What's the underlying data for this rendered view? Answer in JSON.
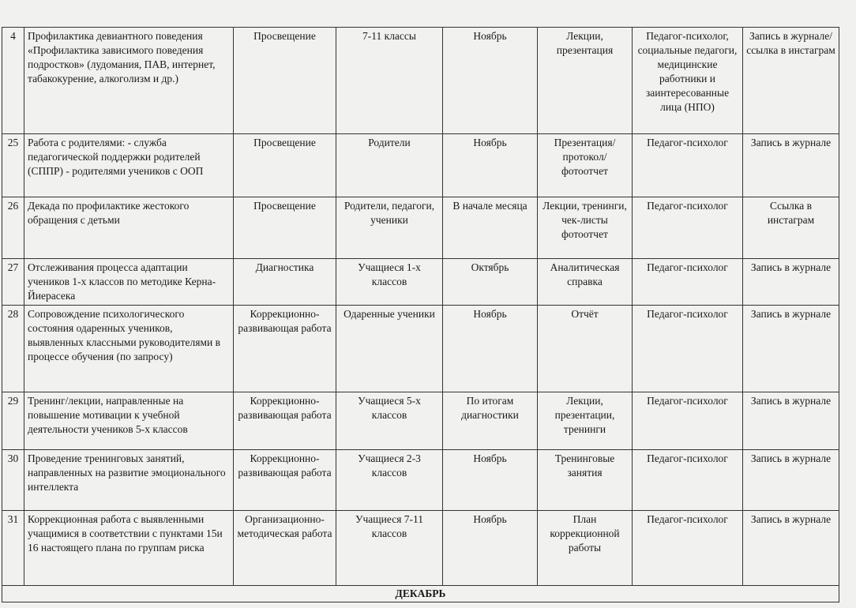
{
  "table": {
    "rows": [
      [
        "4",
        "Профилактика девиантного поведения «Профилактика зависимого поведения подростков» (лудомания, ПАВ, интернет, табакокурение, алкоголизм и др.)",
        "Просвещение",
        "7-11 классы",
        "Ноябрь",
        "Лекции, презентация",
        "Педагог-психолог, социальные педагоги, медицинские работники и заинтересованные лица (НПО)",
        "Запись в журнале/ ссылка в инстаграм"
      ],
      [
        "25",
        "Работа с родителями: - служба педагогической поддержки родителей (СППР) - родителями учеников с ООП",
        "Просвещение",
        "Родители",
        "Ноябрь",
        "Презентация/ протокол/ фотоотчет",
        "Педагог-психолог",
        "Запись в журнале"
      ],
      [
        "26",
        "Декада по профилактике жестокого обращения с детьми",
        "Просвещение",
        "Родители, педагоги, ученики",
        "В начале месяца",
        "Лекции, тренинги, чек-листы фотоотчет",
        "Педагог-психолог",
        "Ссылка в инстаграм"
      ],
      [
        "27",
        "Отслеживания процесса адаптации учеников 1-х классов по методике Керна-Йиерасека",
        "Диагностика",
        "Учащиеся 1-х классов",
        "Октябрь",
        "Аналитическая справка",
        "Педагог-психолог",
        "Запись в журнале"
      ],
      [
        "28",
        "Сопровождение психологического состояния одаренных учеников, выявленных классными руководителями в процессе обучения (по запросу)",
        "Коррекционно-развивающая работа",
        "Одаренные ученики",
        "Ноябрь",
        "Отчёт",
        "Педагог-психолог",
        "Запись в журнале"
      ],
      [
        "29",
        "Тренинг/лекции, направленные на повышение мотивации к учебной деятельности учеников 5-х классов",
        "Коррекционно-развивающая работа",
        "Учащиеся 5-х классов",
        "По итогам диагностики",
        "Лекции, презентации, тренинги",
        "Педагог-психолог",
        "Запись в журнале"
      ],
      [
        "30",
        "Проведение тренинговых занятий, направленных на развитие эмоционального интеллекта",
        "Коррекционно-развивающая работа",
        "Учащиеся 2-3 классов",
        "Ноябрь",
        "Тренинговые занятия",
        "Педагог-психолог",
        "Запись в журнале"
      ],
      [
        "31",
        "Коррекционная работа с выявленными учащимися в соответствии с пунктами 15и 16 настоящего плана по группам риска",
        "Организационно-методическая работа",
        "Учащиеся 7-11 классов",
        "Ноябрь",
        "План коррекционной работы",
        "Педагог-психолог",
        "Запись в журнале"
      ]
    ],
    "footer": "ДЕКАБРЬ"
  }
}
